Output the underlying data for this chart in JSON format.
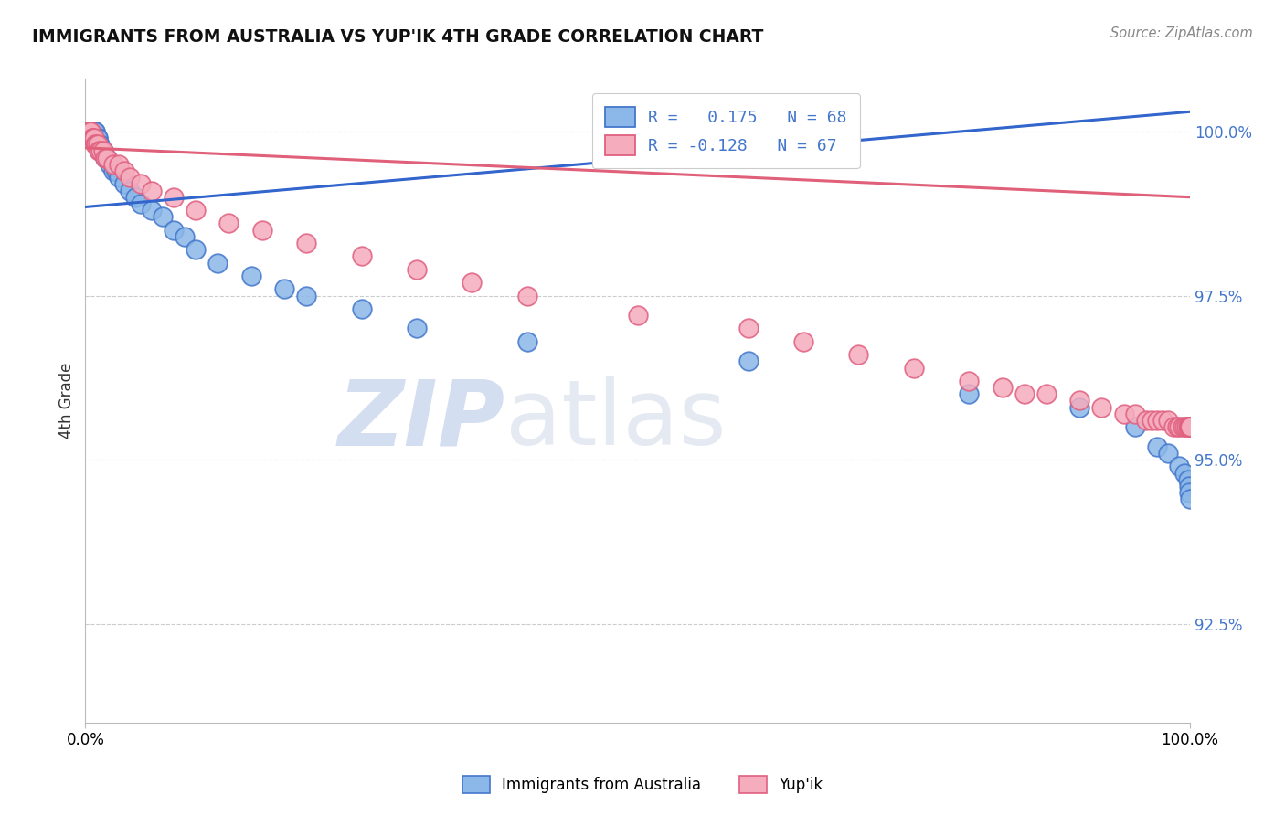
{
  "title": "IMMIGRANTS FROM AUSTRALIA VS YUP'IK 4TH GRADE CORRELATION CHART",
  "source_text": "Source: ZipAtlas.com",
  "ylabel": "4th Grade",
  "x_min": 0.0,
  "x_max": 1.0,
  "y_min": 0.91,
  "y_max": 1.008,
  "y_ticks": [
    1.0,
    0.975,
    0.95,
    0.925
  ],
  "y_tick_labels": [
    "100.0%",
    "97.5%",
    "95.0%",
    "92.5%"
  ],
  "blue_color": "#8BB8E8",
  "pink_color": "#F5ACBC",
  "blue_edge_color": "#4477CC",
  "pink_edge_color": "#E06080",
  "blue_line_color": "#3366CC",
  "pink_line_color": "#E0607A",
  "watermark_color": "#D0DCF0",
  "watermark_text": "ZIPatlas",
  "blue_label": "Immigrants from Australia",
  "pink_label": "Yup'ik",
  "legend_line1": "R =   0.175   N = 68",
  "legend_line2": "R = -0.128   N = 67",
  "legend_text_color": "#4477CC",
  "blue_x": [
    0.001,
    0.001,
    0.001,
    0.002,
    0.002,
    0.002,
    0.002,
    0.003,
    0.003,
    0.003,
    0.004,
    0.004,
    0.004,
    0.005,
    0.005,
    0.005,
    0.006,
    0.006,
    0.007,
    0.007,
    0.007,
    0.008,
    0.008,
    0.009,
    0.009,
    0.01,
    0.01,
    0.011,
    0.011,
    0.012,
    0.013,
    0.014,
    0.015,
    0.016,
    0.018,
    0.02,
    0.022,
    0.025,
    0.028,
    0.03,
    0.035,
    0.04,
    0.045,
    0.05,
    0.06,
    0.07,
    0.08,
    0.09,
    0.1,
    0.12,
    0.15,
    0.18,
    0.2,
    0.25,
    0.3,
    0.4,
    0.6,
    0.8,
    0.9,
    0.95,
    0.97,
    0.98,
    0.99,
    0.995,
    0.998,
    0.999,
    0.999,
    1.0
  ],
  "blue_y": [
    1.0,
    1.0,
    1.0,
    1.0,
    1.0,
    1.0,
    1.0,
    1.0,
    1.0,
    1.0,
    1.0,
    1.0,
    1.0,
    1.0,
    1.0,
    1.0,
    1.0,
    1.0,
    1.0,
    1.0,
    1.0,
    1.0,
    1.0,
    1.0,
    1.0,
    0.999,
    0.999,
    0.999,
    0.999,
    0.998,
    0.998,
    0.997,
    0.997,
    0.997,
    0.996,
    0.996,
    0.995,
    0.994,
    0.994,
    0.993,
    0.992,
    0.991,
    0.99,
    0.989,
    0.988,
    0.987,
    0.985,
    0.984,
    0.982,
    0.98,
    0.978,
    0.976,
    0.975,
    0.973,
    0.97,
    0.968,
    0.965,
    0.96,
    0.958,
    0.955,
    0.952,
    0.951,
    0.949,
    0.948,
    0.947,
    0.946,
    0.945,
    0.944
  ],
  "pink_x": [
    0.001,
    0.001,
    0.002,
    0.002,
    0.003,
    0.003,
    0.004,
    0.004,
    0.005,
    0.005,
    0.006,
    0.006,
    0.007,
    0.008,
    0.009,
    0.01,
    0.011,
    0.012,
    0.014,
    0.016,
    0.018,
    0.02,
    0.025,
    0.03,
    0.035,
    0.04,
    0.05,
    0.06,
    0.08,
    0.1,
    0.13,
    0.16,
    0.2,
    0.25,
    0.3,
    0.35,
    0.4,
    0.5,
    0.6,
    0.65,
    0.7,
    0.75,
    0.8,
    0.83,
    0.85,
    0.87,
    0.9,
    0.92,
    0.94,
    0.95,
    0.96,
    0.965,
    0.97,
    0.975,
    0.98,
    0.985,
    0.988,
    0.99,
    0.993,
    0.995,
    0.997,
    0.998,
    0.999,
    0.999,
    1.0,
    1.0,
    1.0
  ],
  "pink_y": [
    1.0,
    1.0,
    1.0,
    1.0,
    1.0,
    1.0,
    1.0,
    1.0,
    1.0,
    1.0,
    0.999,
    0.999,
    0.999,
    0.999,
    0.998,
    0.998,
    0.998,
    0.997,
    0.997,
    0.997,
    0.996,
    0.996,
    0.995,
    0.995,
    0.994,
    0.993,
    0.992,
    0.991,
    0.99,
    0.988,
    0.986,
    0.985,
    0.983,
    0.981,
    0.979,
    0.977,
    0.975,
    0.972,
    0.97,
    0.968,
    0.966,
    0.964,
    0.962,
    0.961,
    0.96,
    0.96,
    0.959,
    0.958,
    0.957,
    0.957,
    0.956,
    0.956,
    0.956,
    0.956,
    0.956,
    0.955,
    0.955,
    0.955,
    0.955,
    0.955,
    0.955,
    0.955,
    0.955,
    0.955,
    0.955,
    0.955,
    0.955
  ],
  "blue_trendline_x": [
    0.0,
    1.0
  ],
  "blue_trendline_y": [
    0.9885,
    1.003
  ],
  "pink_trendline_x": [
    0.0,
    1.0
  ],
  "pink_trendline_y": [
    0.9975,
    0.99
  ]
}
